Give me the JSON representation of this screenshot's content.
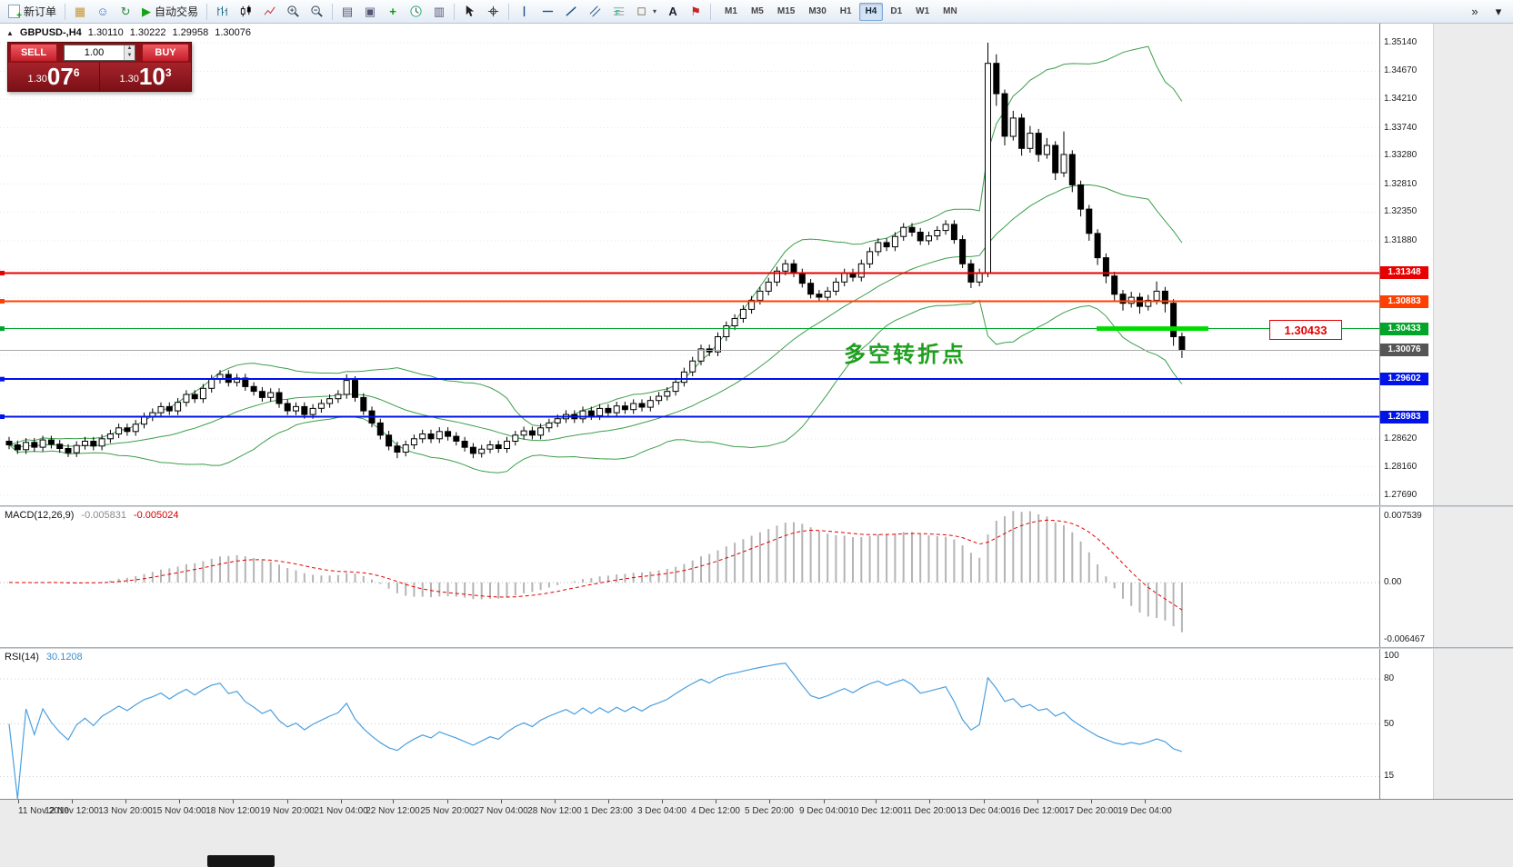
{
  "toolbar": {
    "new_order": "新订单",
    "autotrade": "自动交易",
    "timeframes": [
      "M1",
      "M5",
      "M15",
      "M30",
      "H1",
      "H4",
      "D1",
      "W1",
      "MN"
    ],
    "active_timeframe": "H4",
    "overflow_glyph": "»",
    "options_glyph": "▾"
  },
  "symbol_header": {
    "collapse_icon": "▲",
    "symbol": "GBPUSD-,H4",
    "open": "1.30110",
    "high": "1.30222",
    "low": "1.29958",
    "close": "1.30076"
  },
  "trade_panel": {
    "sell_label": "SELL",
    "buy_label": "BUY",
    "volume": "1.00",
    "sell_price_prefix": "1.30",
    "sell_price_big": "07",
    "sell_price_sup": "6",
    "buy_price_prefix": "1.30",
    "buy_price_big": "10",
    "buy_price_sup": "3"
  },
  "annotation": {
    "text": "多空转折点"
  },
  "callout": {
    "text": "1.30433"
  },
  "indicators": {
    "macd": {
      "title": "MACD(12,26,9)",
      "main_value": "-0.005831",
      "signal_value": "-0.005024",
      "scale": {
        "top": "0.007539",
        "zero": "0.00",
        "bottom": "-0.006467"
      }
    },
    "rsi": {
      "title": "RSI(14)",
      "value": "30.1208"
    }
  },
  "chart_data": {
    "type": "candlestick",
    "symbol": "GBPUSD-",
    "timeframe": "H4",
    "price_range": {
      "min": 1.27525,
      "max": 1.35454
    },
    "bid": 1.30076,
    "axis_ticks": [
      1.3514,
      1.3467,
      1.3421,
      1.3374,
      1.3328,
      1.3281,
      1.3235,
      1.3188,
      1.3141,
      1.3094,
      1.3047,
      1.3,
      1.2953,
      1.2906,
      1.2862,
      1.2816,
      1.2769
    ],
    "levels": [
      {
        "value": 1.31348,
        "color": "#e80000",
        "width": 2,
        "label": "1.31348"
      },
      {
        "value": 1.30883,
        "color": "#ff4000",
        "width": 2,
        "label": "1.30883"
      },
      {
        "value": 1.30433,
        "color": "#00a52a",
        "width": 1,
        "label": "1.30433"
      },
      {
        "value": 1.29602,
        "color": "#0013e8",
        "width": 2,
        "label": "1.29602"
      },
      {
        "value": 1.28983,
        "color": "#0013e8",
        "width": 2,
        "label": "1.28983"
      }
    ],
    "highlight_segment": {
      "value": 1.30433,
      "from_frac": 0.795,
      "to_frac": 0.876,
      "color": "#00dc00",
      "thickness": 5
    },
    "bollinger": {
      "period": 20,
      "deviation": 2
    },
    "macd": {
      "fast": 12,
      "slow": 26,
      "signal": 9,
      "range": {
        "max": 0.007539,
        "min": -0.006467
      }
    },
    "rsi": {
      "period": 14,
      "scale_values": [
        100,
        80,
        50,
        15
      ],
      "level_values": [
        80,
        50,
        15
      ]
    },
    "time_labels": [
      {
        "t": "11 Nov 2019",
        "f": 0.013
      },
      {
        "t": "12 Nov 12:00",
        "f": 0.052
      },
      {
        "t": "13 Nov 20:00",
        "f": 0.091
      },
      {
        "t": "15 Nov 04:00",
        "f": 0.13
      },
      {
        "t": "18 Nov 12:00",
        "f": 0.169
      },
      {
        "t": "19 Nov 20:00",
        "f": 0.208
      },
      {
        "t": "21 Nov 04:00",
        "f": 0.247
      },
      {
        "t": "22 Nov 12:00",
        "f": 0.285
      },
      {
        "t": "25 Nov 20:00",
        "f": 0.324
      },
      {
        "t": "27 Nov 04:00",
        "f": 0.363
      },
      {
        "t": "28 Nov 12:00",
        "f": 0.402
      },
      {
        "t": "1 Dec 23:00",
        "f": 0.441
      },
      {
        "t": "3 Dec 04:00",
        "f": 0.48
      },
      {
        "t": "4 Dec 12:00",
        "f": 0.519
      },
      {
        "t": "5 Dec 20:00",
        "f": 0.558
      },
      {
        "t": "9 Dec 04:00",
        "f": 0.597
      },
      {
        "t": "10 Dec 12:00",
        "f": 0.635
      },
      {
        "t": "11 Dec 20:00",
        "f": 0.674
      },
      {
        "t": "13 Dec 04:00",
        "f": 0.713
      },
      {
        "t": "16 Dec 12:00",
        "f": 0.752
      },
      {
        "t": "17 Dec 20:00",
        "f": 0.791
      },
      {
        "t": "19 Dec 04:00",
        "f": 0.83
      }
    ],
    "candles": [
      [
        1.2858,
        1.2865,
        1.2845,
        1.2852
      ],
      [
        1.2852,
        1.2859,
        1.2837,
        1.2844
      ],
      [
        1.2844,
        1.2863,
        1.2837,
        1.2856
      ],
      [
        1.2856,
        1.2863,
        1.2841,
        1.2848
      ],
      [
        1.2848,
        1.2867,
        1.2841,
        1.286
      ],
      [
        1.286,
        1.2867,
        1.2846,
        1.2853
      ],
      [
        1.2853,
        1.286,
        1.2839,
        1.2846
      ],
      [
        1.2846,
        1.2853,
        1.2832,
        1.2839
      ],
      [
        1.2839,
        1.2858,
        1.2832,
        1.2851
      ],
      [
        1.2851,
        1.2865,
        1.2844,
        1.2858
      ],
      [
        1.2858,
        1.2865,
        1.2843,
        1.285
      ],
      [
        1.285,
        1.2869,
        1.2843,
        1.2862
      ],
      [
        1.2862,
        1.2877,
        1.2855,
        1.287
      ],
      [
        1.287,
        1.2887,
        1.2863,
        1.288
      ],
      [
        1.288,
        1.2887,
        1.2867,
        1.2874
      ],
      [
        1.2874,
        1.2893,
        1.2867,
        1.2886
      ],
      [
        1.2886,
        1.2905,
        1.2879,
        1.2898
      ],
      [
        1.2898,
        1.2912,
        1.2891,
        1.2905
      ],
      [
        1.2905,
        1.2922,
        1.2898,
        1.2915
      ],
      [
        1.2915,
        1.2922,
        1.2901,
        1.2908
      ],
      [
        1.2908,
        1.2929,
        1.2901,
        1.2922
      ],
      [
        1.2922,
        1.2942,
        1.2915,
        1.2935
      ],
      [
        1.2935,
        1.2942,
        1.2921,
        1.2928
      ],
      [
        1.2928,
        1.2952,
        1.2921,
        1.2945
      ],
      [
        1.2945,
        1.2967,
        1.2938,
        1.296
      ],
      [
        1.296,
        1.2975,
        1.2953,
        1.2968
      ],
      [
        1.2968,
        1.2975,
        1.2948,
        1.2955
      ],
      [
        1.2955,
        1.2969,
        1.2948,
        1.2962
      ],
      [
        1.2962,
        1.2969,
        1.2941,
        1.2948
      ],
      [
        1.2948,
        1.2955,
        1.2933,
        1.294
      ],
      [
        1.294,
        1.2947,
        1.2923,
        1.293
      ],
      [
        1.293,
        1.2945,
        1.2923,
        1.2938
      ],
      [
        1.2938,
        1.2945,
        1.2913,
        1.292
      ],
      [
        1.292,
        1.2927,
        1.2901,
        1.2908
      ],
      [
        1.2908,
        1.2922,
        1.2901,
        1.2915
      ],
      [
        1.2915,
        1.2922,
        1.2895,
        1.2902
      ],
      [
        1.2902,
        1.2919,
        1.2895,
        1.2912
      ],
      [
        1.2912,
        1.2927,
        1.2905,
        1.292
      ],
      [
        1.292,
        1.2935,
        1.2913,
        1.2928
      ],
      [
        1.2928,
        1.2942,
        1.2921,
        1.2935
      ],
      [
        1.2935,
        1.2968,
        1.2928,
        1.2958
      ],
      [
        1.2958,
        1.2965,
        1.2923,
        1.293
      ],
      [
        1.293,
        1.2937,
        1.2901,
        1.2908
      ],
      [
        1.2908,
        1.2915,
        1.2881,
        1.2888
      ],
      [
        1.2888,
        1.2895,
        1.2861,
        1.2868
      ],
      [
        1.2868,
        1.2875,
        1.2843,
        1.285
      ],
      [
        1.285,
        1.2857,
        1.283,
        1.284
      ],
      [
        1.284,
        1.2859,
        1.2833,
        1.2852
      ],
      [
        1.2852,
        1.2869,
        1.2845,
        1.2862
      ],
      [
        1.2862,
        1.2877,
        1.2855,
        1.287
      ],
      [
        1.287,
        1.2877,
        1.2855,
        1.2862
      ],
      [
        1.2862,
        1.2881,
        1.2855,
        1.2874
      ],
      [
        1.2874,
        1.2881,
        1.2859,
        1.2866
      ],
      [
        1.2866,
        1.2873,
        1.2851,
        1.2858
      ],
      [
        1.2858,
        1.2865,
        1.2841,
        1.2848
      ],
      [
        1.2848,
        1.2855,
        1.283,
        1.2838
      ],
      [
        1.2838,
        1.2852,
        1.2831,
        1.2845
      ],
      [
        1.2845,
        1.2859,
        1.2838,
        1.2852
      ],
      [
        1.2852,
        1.2859,
        1.2839,
        1.2846
      ],
      [
        1.2846,
        1.2865,
        1.2839,
        1.2858
      ],
      [
        1.2858,
        1.2875,
        1.2851,
        1.2868
      ],
      [
        1.2868,
        1.2882,
        1.2861,
        1.2875
      ],
      [
        1.2875,
        1.2882,
        1.2861,
        1.2868
      ],
      [
        1.2868,
        1.2887,
        1.2861,
        1.288
      ],
      [
        1.288,
        1.2895,
        1.2873,
        1.2888
      ],
      [
        1.2888,
        1.2902,
        1.2881,
        1.2895
      ],
      [
        1.2895,
        1.2909,
        1.2888,
        1.2902
      ],
      [
        1.2902,
        1.2909,
        1.2888,
        1.2895
      ],
      [
        1.2895,
        1.2915,
        1.2888,
        1.2908
      ],
      [
        1.2908,
        1.2915,
        1.2893,
        1.29
      ],
      [
        1.29,
        1.2919,
        1.2893,
        1.2912
      ],
      [
        1.2912,
        1.2919,
        1.2898,
        1.2905
      ],
      [
        1.2905,
        1.2923,
        1.2898,
        1.2916
      ],
      [
        1.2916,
        1.2923,
        1.2903,
        1.291
      ],
      [
        1.291,
        1.2927,
        1.2903,
        1.292
      ],
      [
        1.292,
        1.2927,
        1.2907,
        1.2914
      ],
      [
        1.2914,
        1.2932,
        1.2907,
        1.2925
      ],
      [
        1.2925,
        1.2939,
        1.2918,
        1.2932
      ],
      [
        1.2932,
        1.2947,
        1.2925,
        1.294
      ],
      [
        1.294,
        1.2962,
        1.2933,
        1.2955
      ],
      [
        1.2955,
        1.2979,
        1.2948,
        1.2972
      ],
      [
        1.2972,
        1.2997,
        1.2965,
        1.299
      ],
      [
        1.299,
        1.3017,
        1.2983,
        1.301
      ],
      [
        1.301,
        1.3017,
        1.2998,
        1.3005
      ],
      [
        1.3005,
        1.3037,
        1.2998,
        1.303
      ],
      [
        1.303,
        1.3055,
        1.3023,
        1.3048
      ],
      [
        1.3048,
        1.3067,
        1.3041,
        1.306
      ],
      [
        1.306,
        1.3082,
        1.3053,
        1.3075
      ],
      [
        1.3075,
        1.3097,
        1.3068,
        1.309
      ],
      [
        1.309,
        1.3112,
        1.3083,
        1.3105
      ],
      [
        1.3105,
        1.3127,
        1.3098,
        1.312
      ],
      [
        1.312,
        1.3145,
        1.3113,
        1.3138
      ],
      [
        1.3138,
        1.3157,
        1.3131,
        1.315
      ],
      [
        1.315,
        1.3157,
        1.3128,
        1.3135
      ],
      [
        1.3135,
        1.3142,
        1.3111,
        1.3118
      ],
      [
        1.3118,
        1.3125,
        1.3093,
        1.31
      ],
      [
        1.31,
        1.3107,
        1.3088,
        1.3095
      ],
      [
        1.3095,
        1.3112,
        1.3088,
        1.3105
      ],
      [
        1.3105,
        1.3127,
        1.3098,
        1.312
      ],
      [
        1.312,
        1.3142,
        1.3113,
        1.3135
      ],
      [
        1.3135,
        1.3142,
        1.3121,
        1.3128
      ],
      [
        1.3128,
        1.3157,
        1.3121,
        1.315
      ],
      [
        1.315,
        1.3177,
        1.3143,
        1.317
      ],
      [
        1.317,
        1.3192,
        1.3163,
        1.3185
      ],
      [
        1.3185,
        1.3192,
        1.3171,
        1.3178
      ],
      [
        1.3178,
        1.3202,
        1.3171,
        1.3195
      ],
      [
        1.3195,
        1.3217,
        1.3188,
        1.321
      ],
      [
        1.321,
        1.3217,
        1.3195,
        1.3202
      ],
      [
        1.3202,
        1.3209,
        1.3181,
        1.3188
      ],
      [
        1.3188,
        1.3203,
        1.3181,
        1.3196
      ],
      [
        1.3196,
        1.3212,
        1.3189,
        1.3205
      ],
      [
        1.3205,
        1.3222,
        1.3198,
        1.3215
      ],
      [
        1.3215,
        1.3222,
        1.3183,
        1.319
      ],
      [
        1.319,
        1.3197,
        1.3143,
        1.315
      ],
      [
        1.315,
        1.3157,
        1.311,
        1.312
      ],
      [
        1.312,
        1.3142,
        1.3113,
        1.3135
      ],
      [
        1.3135,
        1.3514,
        1.3128,
        1.348
      ],
      [
        1.348,
        1.3495,
        1.341,
        1.343
      ],
      [
        1.343,
        1.3437,
        1.3345,
        1.336
      ],
      [
        1.336,
        1.3402,
        1.3353,
        1.339
      ],
      [
        1.339,
        1.3397,
        1.3328,
        1.334
      ],
      [
        1.334,
        1.3377,
        1.3333,
        1.3365
      ],
      [
        1.3365,
        1.3372,
        1.3318,
        1.333
      ],
      [
        1.333,
        1.3357,
        1.3323,
        1.3345
      ],
      [
        1.3345,
        1.3352,
        1.3288,
        1.33
      ],
      [
        1.33,
        1.3368,
        1.3293,
        1.333
      ],
      [
        1.333,
        1.3337,
        1.3268,
        1.328
      ],
      [
        1.328,
        1.3287,
        1.3228,
        1.324
      ],
      [
        1.324,
        1.3247,
        1.3188,
        1.32
      ],
      [
        1.32,
        1.3207,
        1.3148,
        1.316
      ],
      [
        1.316,
        1.3167,
        1.3118,
        1.313
      ],
      [
        1.313,
        1.3137,
        1.3088,
        1.31
      ],
      [
        1.31,
        1.3107,
        1.3073,
        1.3085
      ],
      [
        1.3085,
        1.3104,
        1.3078,
        1.3095
      ],
      [
        1.3095,
        1.3102,
        1.3068,
        1.308
      ],
      [
        1.308,
        1.3099,
        1.3073,
        1.309
      ],
      [
        1.309,
        1.3121,
        1.3083,
        1.3105
      ],
      [
        1.3105,
        1.3112,
        1.307,
        1.3085
      ],
      [
        1.3085,
        1.3092,
        1.3015,
        1.303
      ],
      [
        1.303,
        1.3037,
        1.2995,
        1.30076
      ]
    ]
  }
}
